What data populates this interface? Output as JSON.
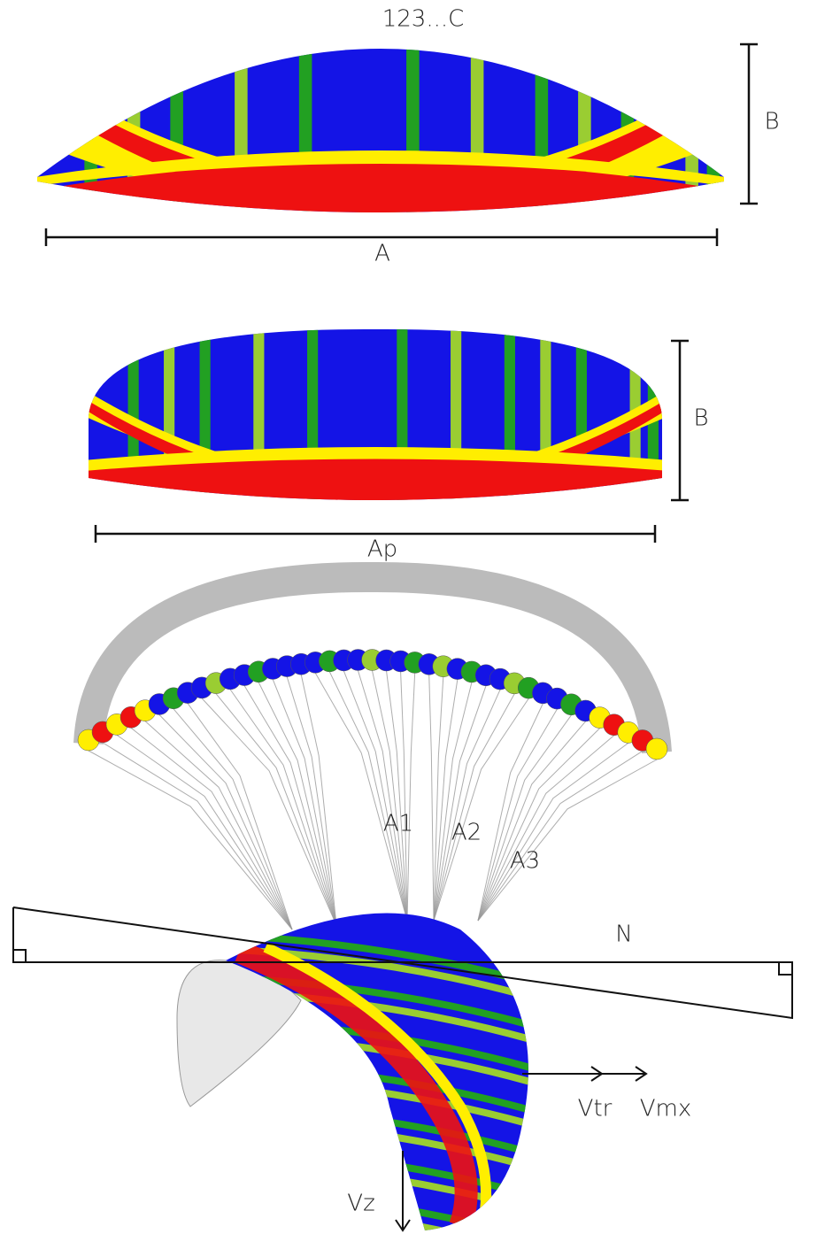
{
  "top_view": {
    "title": "123...C",
    "height_label": "B",
    "span_label": "A"
  },
  "front_view": {
    "height_label": "B",
    "span_label": "Ap"
  },
  "lines_view": {
    "risers": [
      "A1",
      "A2",
      "A3"
    ]
  },
  "side_view": {
    "angle_label": "N",
    "speeds": [
      "Vtr",
      "Vmx"
    ],
    "sink_label": "Vz"
  }
}
